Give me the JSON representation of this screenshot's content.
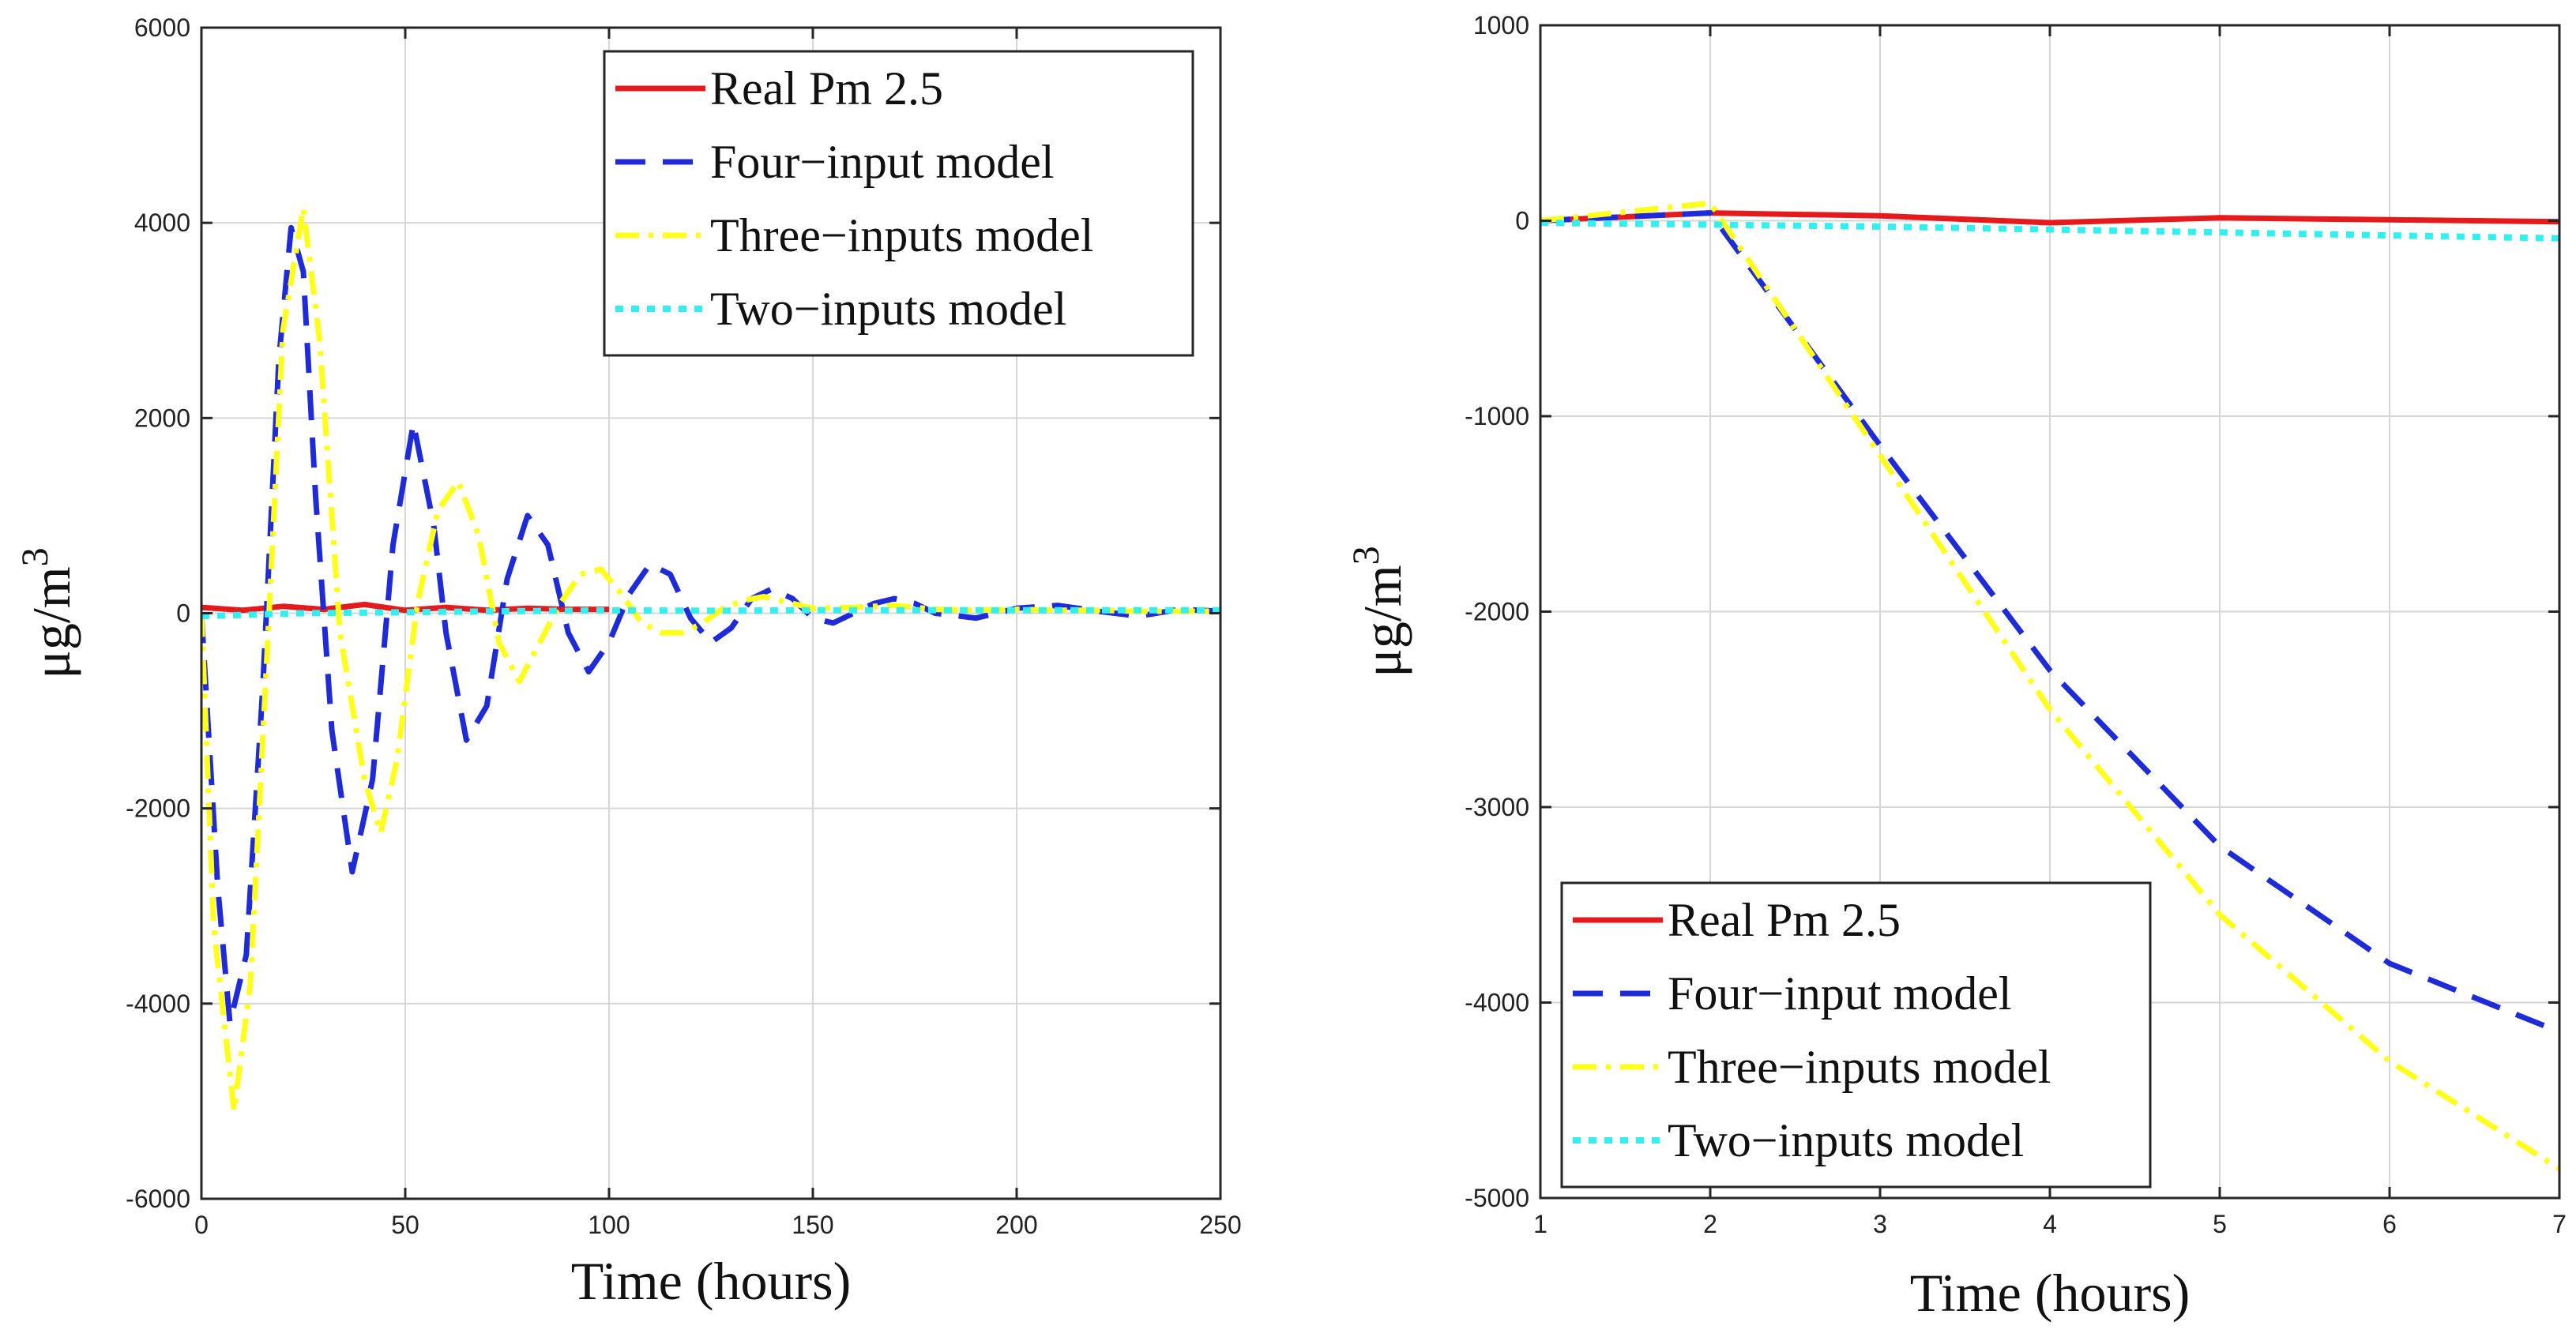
{
  "colors": {
    "real": "#e41a1c",
    "four": "#1f2bd6",
    "three": "#ffff1a",
    "two": "#33f0f0"
  },
  "chart_data": [
    {
      "type": "line",
      "title": "",
      "xlabel": "Time (hours)",
      "ylabel": "μg/m",
      "ylabel_sup": "3",
      "xlim": [
        0,
        250
      ],
      "ylim": [
        -6000,
        6000
      ],
      "xticks": [
        0,
        50,
        100,
        150,
        200,
        250
      ],
      "yticks": [
        -6000,
        -4000,
        -2000,
        0,
        2000,
        4000,
        6000
      ],
      "grid": true,
      "legend_position": "top-right",
      "series": [
        {
          "name": "Real Pm 2.5",
          "style": "solid",
          "color_key": "real",
          "x": [
            0,
            10,
            20,
            30,
            40,
            50,
            60,
            70,
            80,
            90,
            100
          ],
          "y": [
            60,
            30,
            70,
            40,
            90,
            30,
            60,
            30,
            50,
            40,
            40
          ]
        },
        {
          "name": "Four−input model",
          "style": "dashed",
          "color_key": "four",
          "x": [
            0,
            4,
            7,
            11,
            15,
            19,
            22,
            25,
            28,
            32,
            37,
            42,
            47,
            52,
            57,
            60,
            65,
            70,
            75,
            80,
            85,
            90,
            95,
            100,
            105,
            110,
            115,
            120,
            125,
            130,
            135,
            140,
            145,
            150,
            155,
            160,
            165,
            170,
            175,
            180,
            190,
            200,
            210,
            220,
            230,
            240,
            250
          ],
          "y": [
            0,
            -2800,
            -4200,
            -3500,
            -800,
            2600,
            3950,
            3500,
            1200,
            -1200,
            -2650,
            -1700,
            700,
            1950,
            900,
            -200,
            -1300,
            -950,
            350,
            1000,
            700,
            -200,
            -600,
            -300,
            200,
            500,
            400,
            -50,
            -300,
            -150,
            150,
            250,
            150,
            -50,
            -100,
            0,
            100,
            150,
            100,
            0,
            -50,
            50,
            80,
            20,
            -30,
            40,
            20
          ]
        },
        {
          "name": "Three−inputs model",
          "style": "dashdot",
          "color_key": "three",
          "x": [
            0,
            3,
            8,
            12,
            16,
            20,
            25,
            29,
            34,
            40,
            44,
            48,
            53,
            58,
            63,
            68,
            73,
            78,
            83,
            88,
            93,
            98,
            103,
            108,
            113,
            118,
            123,
            128,
            133,
            138,
            145,
            150,
            160,
            170,
            180,
            190,
            200,
            210,
            220,
            230,
            240,
            250
          ],
          "y": [
            0,
            -3200,
            -5100,
            -3800,
            -500,
            2900,
            4150,
            2800,
            -200,
            -1700,
            -2250,
            -1500,
            100,
            1050,
            1350,
            800,
            -300,
            -700,
            -300,
            100,
            400,
            450,
            200,
            -100,
            -200,
            -200,
            -100,
            50,
            130,
            170,
            100,
            50,
            60,
            80,
            40,
            30,
            40,
            30,
            30,
            20,
            20,
            20
          ]
        },
        {
          "name": "Two−inputs model",
          "style": "dotted",
          "color_key": "two",
          "x": [
            0,
            25,
            50,
            75,
            100,
            125,
            150,
            175,
            200,
            225,
            250
          ],
          "y": [
            -30,
            0,
            10,
            20,
            30,
            25,
            30,
            30,
            30,
            30,
            30
          ]
        }
      ]
    },
    {
      "type": "line",
      "title": "",
      "xlabel": "Time (hours)",
      "ylabel": "μg/m",
      "ylabel_sup": "3",
      "xlim": [
        1,
        7
      ],
      "ylim": [
        -5000,
        1000
      ],
      "xticks": [
        1,
        2,
        3,
        4,
        5,
        6,
        7
      ],
      "yticks": [
        -5000,
        -4000,
        -3000,
        -2000,
        -1000,
        0,
        1000
      ],
      "grid": true,
      "legend_position": "bottom-left",
      "series": [
        {
          "name": "Real Pm 2.5",
          "style": "solid",
          "color_key": "real",
          "x": [
            1,
            2,
            3,
            4,
            5,
            6,
            7
          ],
          "y": [
            0,
            40,
            25,
            -10,
            15,
            5,
            -5
          ]
        },
        {
          "name": "Four−input model",
          "style": "dashed",
          "color_key": "four",
          "x": [
            1,
            2,
            3,
            4,
            5,
            6,
            7
          ],
          "y": [
            0,
            40,
            -1150,
            -2300,
            -3200,
            -3800,
            -4150
          ]
        },
        {
          "name": "Three−inputs model",
          "style": "dashdot",
          "color_key": "three",
          "x": [
            1,
            2,
            3,
            4,
            5,
            6,
            7
          ],
          "y": [
            0,
            90,
            -1200,
            -2500,
            -3550,
            -4300,
            -4850
          ]
        },
        {
          "name": "Two−inputs model",
          "style": "dotted",
          "color_key": "two",
          "x": [
            1,
            2,
            3,
            4,
            5,
            6,
            7
          ],
          "y": [
            -10,
            -20,
            -30,
            -45,
            -60,
            -75,
            -90
          ]
        }
      ]
    }
  ]
}
